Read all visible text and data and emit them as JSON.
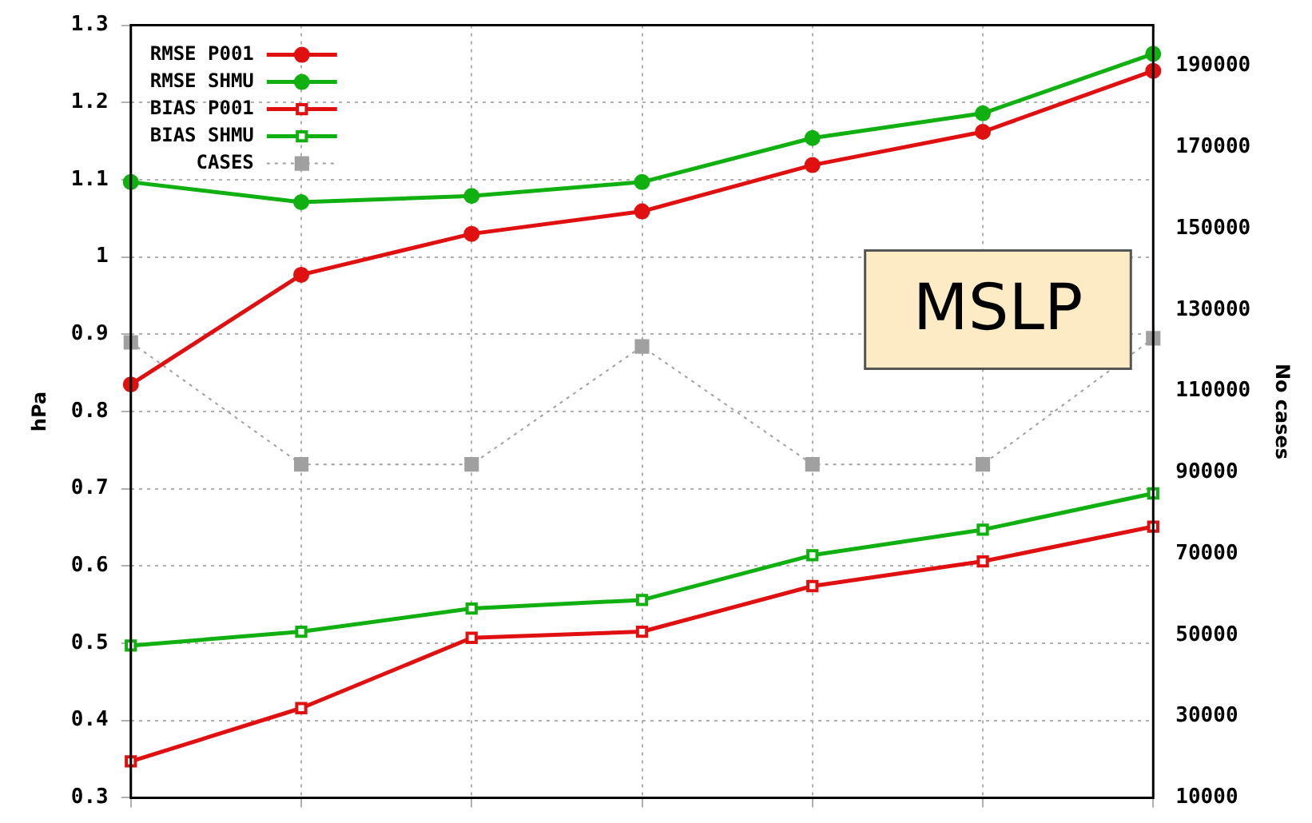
{
  "chart_data": {
    "type": "line",
    "categories": [
      null,
      null,
      null,
      null,
      null,
      null,
      null
    ],
    "ylabel": "hPa",
    "y2label": "No cases",
    "ylim": [
      0.3,
      1.3
    ],
    "yticks": [
      0.3,
      0.4,
      0.5,
      0.6,
      0.7,
      0.8,
      0.9,
      1,
      1.1,
      1.2,
      1.3
    ],
    "y2lim": [
      10000,
      200000
    ],
    "y2ticks": [
      10000,
      30000,
      50000,
      70000,
      90000,
      110000,
      130000,
      150000,
      170000,
      190000
    ],
    "grid": true,
    "legend": "top left",
    "annotations": [
      "MSLP"
    ],
    "series": [
      {
        "name": "RMSE P001",
        "color": "#e01010",
        "marker": "circle",
        "line_style": "solid",
        "values": [
          0.835,
          0.977,
          1.03,
          1.059,
          1.119,
          1.162,
          1.241
        ]
      },
      {
        "name": "RMSE SHMU",
        "color": "#10b010",
        "marker": "circle",
        "line_style": "solid",
        "values": [
          1.097,
          1.071,
          1.079,
          1.097,
          1.154,
          1.186,
          1.263
        ]
      },
      {
        "name": "BIAS P001",
        "color": "#e01010",
        "marker": "square",
        "line_style": "solid",
        "values": [
          0.347,
          0.416,
          0.507,
          0.515,
          0.574,
          0.606,
          0.651
        ]
      },
      {
        "name": "BIAS SHMU",
        "color": "#10b010",
        "marker": "square",
        "line_style": "solid",
        "values": [
          0.497,
          0.515,
          0.545,
          0.556,
          0.614,
          0.647,
          0.694
        ]
      },
      {
        "name": "CASES",
        "color": "#a0a0a0",
        "marker": "square",
        "line_style": "dotted",
        "axis": "y2",
        "values": [
          122000,
          92000,
          92000,
          121000,
          92000,
          92000,
          123000
        ]
      }
    ]
  }
}
